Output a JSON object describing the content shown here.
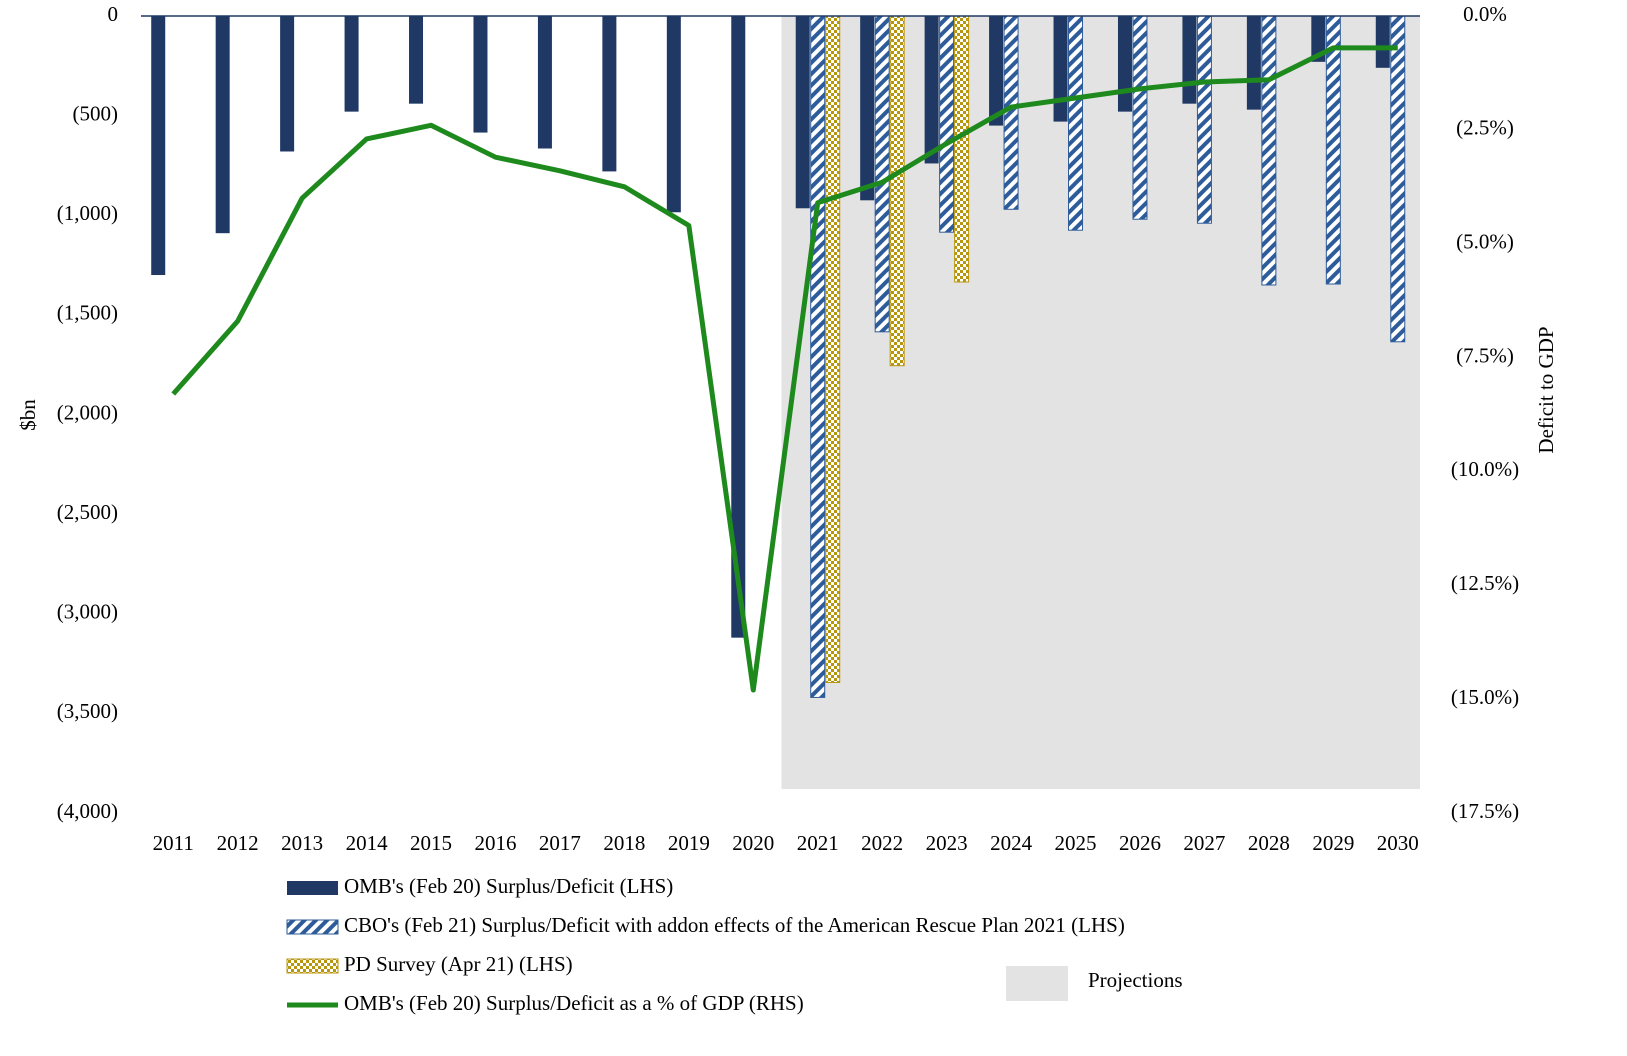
{
  "chart_data": {
    "type": "bar",
    "categories": [
      "2011",
      "2012",
      "2013",
      "2014",
      "2015",
      "2016",
      "2017",
      "2018",
      "2019",
      "2020",
      "2021",
      "2022",
      "2023",
      "2024",
      "2025",
      "2026",
      "2027",
      "2028",
      "2029",
      "2030"
    ],
    "series": [
      {
        "name": "OMB's (Feb 20) Surplus/Deficit (LHS)",
        "color": "#1f3864",
        "pattern": "solid",
        "values": [
          -1300,
          -1090,
          -680,
          -480,
          -440,
          -585,
          -665,
          -780,
          -985,
          -3120,
          -965,
          -925,
          -740,
          -550,
          -530,
          -480,
          -440,
          -470,
          -230,
          -260
        ]
      },
      {
        "name": "CBO's (Feb 21) Surplus/Deficit with addon effects of the American Rescue Plan 2021 (LHS)",
        "color": "#2e5c9a",
        "pattern": "diagonal",
        "values": [
          null,
          null,
          null,
          null,
          null,
          null,
          null,
          null,
          null,
          null,
          -3420,
          -1585,
          -1085,
          -970,
          -1075,
          -1020,
          -1040,
          -1350,
          -1345,
          -1635
        ]
      },
      {
        "name": "PD Survey (Apr 21) (LHS)",
        "color": "#b8960c",
        "pattern": "checker",
        "values": [
          null,
          null,
          null,
          null,
          null,
          null,
          null,
          null,
          null,
          null,
          -3345,
          -1755,
          -1335,
          null,
          null,
          null,
          null,
          null,
          null,
          null
        ]
      },
      {
        "name": "OMB's (Feb 20) Surplus/Deficit as a % of GDP (RHS)",
        "color": "#1e8a1e",
        "type": "line",
        "axis": "y2",
        "values": [
          -8.3,
          -6.7,
          -4.0,
          -2.7,
          -2.4,
          -3.1,
          -3.4,
          -3.75,
          -4.6,
          -14.8,
          -4.1,
          -3.65,
          -2.8,
          -2.0,
          -1.8,
          -1.6,
          -1.45,
          -1.4,
          -0.7,
          -0.7
        ]
      }
    ],
    "ylabel": "$bn",
    "y2label": "Deficit to GDP",
    "ylim": [
      -4000,
      0
    ],
    "yticks": [
      0,
      {
        "value": -500,
        "label": "(500)"
      },
      {
        "value": -1000,
        "label": "(1,000)"
      },
      {
        "value": -1500,
        "label": "(1,500)"
      },
      {
        "value": -2000,
        "label": "(2,000)"
      },
      {
        "value": -2500,
        "label": "(2,500)"
      },
      {
        "value": -3000,
        "label": "(3,000)"
      },
      {
        "value": -3500,
        "label": "(3,500)"
      },
      {
        "value": -4000,
        "label": "(4,000)"
      }
    ],
    "y2lim": [
      -17.5,
      0
    ],
    "y2ticks": [
      {
        "value": 0,
        "label": "0.0%"
      },
      {
        "value": -2.5,
        "label": "(2.5%)"
      },
      {
        "value": -5,
        "label": "(5.0%)"
      },
      {
        "value": -7.5,
        "label": "(7.5%)"
      },
      {
        "value": -10,
        "label": "(10.0%)"
      },
      {
        "value": -12.5,
        "label": "(12.5%)"
      },
      {
        "value": -15,
        "label": "(15.0%)"
      },
      {
        "value": -17.5,
        "label": "(17.5%)"
      }
    ],
    "shade": {
      "label": "Projections",
      "from": "2021",
      "color": "#e3e3e3"
    },
    "negative_tick_color": "#e00000",
    "legend": "bottom"
  }
}
